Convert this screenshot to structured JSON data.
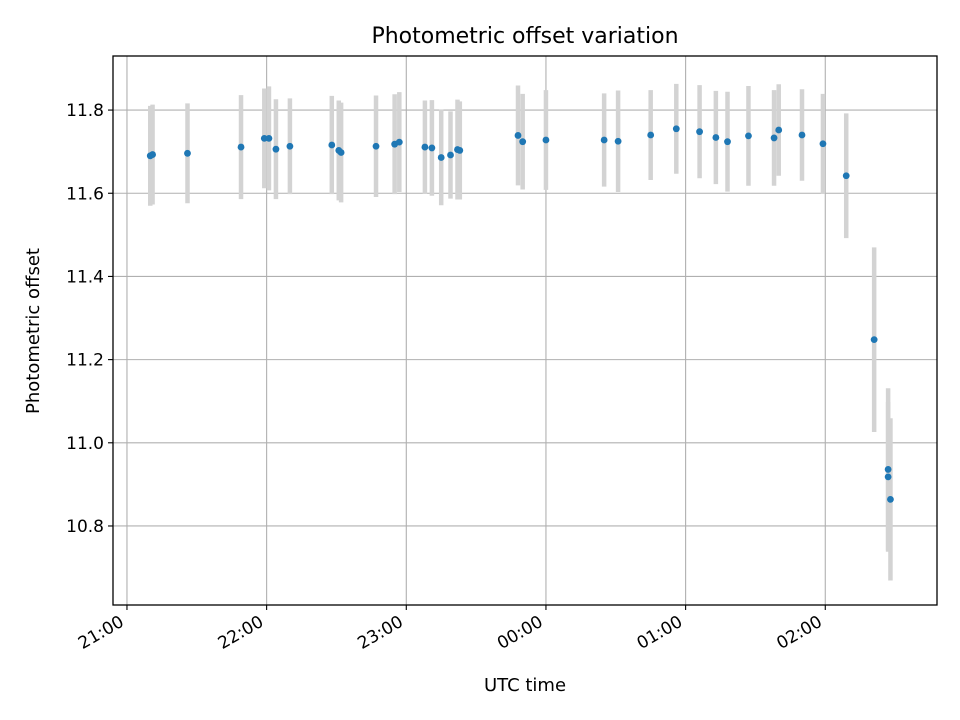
{
  "chart_data": {
    "type": "scatter",
    "title": "Photometric offset variation",
    "xlabel": "UTC time",
    "ylabel": "Photometric offset",
    "x_unit": "time-of-day (HH:MM, next-day values past 24:00)",
    "xlim": [
      "20:54",
      "26:48"
    ],
    "ylim": [
      10.61,
      11.93
    ],
    "xticks": [
      "21:00",
      "22:00",
      "23:00",
      "00:00",
      "01:00",
      "02:00"
    ],
    "yticks": [
      "10.8",
      "11.0",
      "11.2",
      "11.4",
      "11.6",
      "11.8"
    ],
    "grid": true,
    "marker_color": "#1f77b4",
    "errorbar_color": "#d3d3d3",
    "points": [
      {
        "x": "21:10",
        "y": 11.69,
        "err": 0.12
      },
      {
        "x": "21:11",
        "y": 11.693,
        "err": 0.12
      },
      {
        "x": "21:26",
        "y": 11.696,
        "err": 0.12
      },
      {
        "x": "21:49",
        "y": 11.711,
        "err": 0.125
      },
      {
        "x": "21:59",
        "y": 11.732,
        "err": 0.12
      },
      {
        "x": "22:01",
        "y": 11.732,
        "err": 0.125
      },
      {
        "x": "22:04",
        "y": 11.706,
        "err": 0.12
      },
      {
        "x": "22:10",
        "y": 11.713,
        "err": 0.115
      },
      {
        "x": "22:28",
        "y": 11.716,
        "err": 0.118
      },
      {
        "x": "22:31",
        "y": 11.703,
        "err": 0.12
      },
      {
        "x": "22:32",
        "y": 11.698,
        "err": 0.12
      },
      {
        "x": "22:47",
        "y": 11.713,
        "err": 0.122
      },
      {
        "x": "22:55",
        "y": 11.718,
        "err": 0.12
      },
      {
        "x": "22:57",
        "y": 11.723,
        "err": 0.12
      },
      {
        "x": "23:08",
        "y": 11.711,
        "err": 0.112
      },
      {
        "x": "23:11",
        "y": 11.709,
        "err": 0.115
      },
      {
        "x": "23:15",
        "y": 11.686,
        "err": 0.115
      },
      {
        "x": "23:19",
        "y": 11.692,
        "err": 0.105
      },
      {
        "x": "23:22",
        "y": 11.705,
        "err": 0.12
      },
      {
        "x": "23:23",
        "y": 11.703,
        "err": 0.118
      },
      {
        "x": "23:48",
        "y": 11.739,
        "err": 0.12
      },
      {
        "x": "23:50",
        "y": 11.724,
        "err": 0.115
      },
      {
        "x": "24:00",
        "y": 11.728,
        "err": 0.12
      },
      {
        "x": "24:25",
        "y": 11.728,
        "err": 0.112
      },
      {
        "x": "24:31",
        "y": 11.725,
        "err": 0.122
      },
      {
        "x": "24:45",
        "y": 11.74,
        "err": 0.108
      },
      {
        "x": "24:56",
        "y": 11.755,
        "err": 0.108
      },
      {
        "x": "25:06",
        "y": 11.748,
        "err": 0.112
      },
      {
        "x": "25:13",
        "y": 11.734,
        "err": 0.112
      },
      {
        "x": "25:18",
        "y": 11.724,
        "err": 0.12
      },
      {
        "x": "25:27",
        "y": 11.738,
        "err": 0.12
      },
      {
        "x": "25:38",
        "y": 11.733,
        "err": 0.115
      },
      {
        "x": "25:40",
        "y": 11.752,
        "err": 0.11
      },
      {
        "x": "25:50",
        "y": 11.74,
        "err": 0.11
      },
      {
        "x": "25:59",
        "y": 11.719,
        "err": 0.12
      },
      {
        "x": "26:09",
        "y": 11.642,
        "err": 0.15
      },
      {
        "x": "26:21",
        "y": 11.248,
        "err": 0.222
      },
      {
        "x": "26:27",
        "y": 10.936,
        "err": 0.195
      },
      {
        "x": "26:27",
        "y": 10.918,
        "err": 0.18
      },
      {
        "x": "26:28",
        "y": 10.864,
        "err": 0.195
      }
    ]
  }
}
